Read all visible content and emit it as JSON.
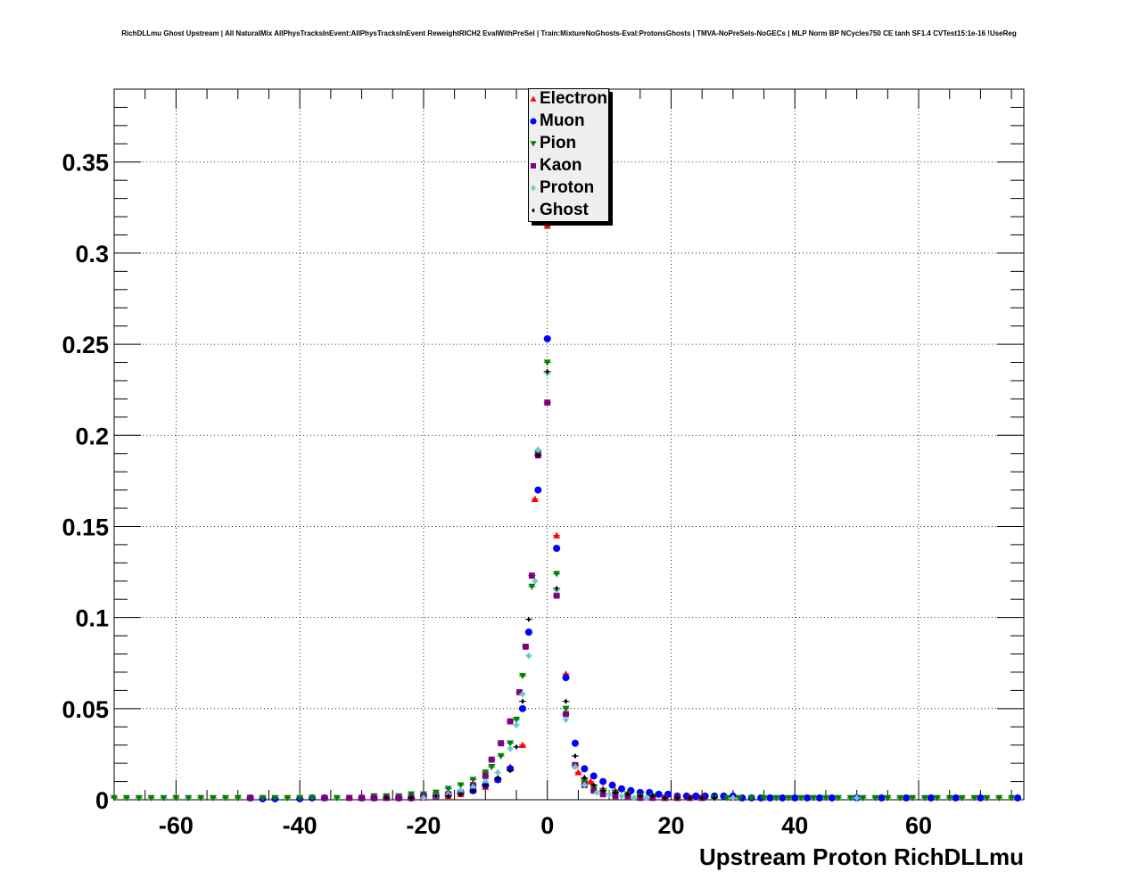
{
  "chart_data": {
    "type": "scatter",
    "title": "RichDLLmu Ghost Upstream | All NaturalMix AllPhysTracksInEvent:AllPhysTracksInEvent ReweightRICH2 EvalWithPreSel | Train:MixtureNoGhosts-Eval:ProtonsGhosts | TMVA-NoPreSels-NoGECs | MLP Norm BP NCycles750 CE tanh SF1.4 CVTest15:1e-16 !UseReg",
    "xlabel": "Upstream Proton RichDLLmu",
    "ylabel": "",
    "xlim": [
      -70,
      77
    ],
    "ylim": [
      0,
      0.39
    ],
    "grid": true,
    "legend_position": "top-center",
    "x_ticks": [
      "-60",
      "-40",
      "-20",
      "0",
      "20",
      "40",
      "60"
    ],
    "x_tick_values": [
      -60,
      -40,
      -20,
      0,
      20,
      40,
      60
    ],
    "y_ticks": [
      "0",
      "0.05",
      "0.1",
      "0.15",
      "0.2",
      "0.25",
      "0.3",
      "0.35"
    ],
    "y_tick_values": [
      0,
      0.05,
      0.1,
      0.15,
      0.2,
      0.25,
      0.3,
      0.35
    ],
    "series": [
      {
        "name": "Electron",
        "color": "#ff0000",
        "marker": "triangle-up",
        "points": [
          [
            -30,
            0.001
          ],
          [
            -28,
            0.001
          ],
          [
            -26,
            0.001
          ],
          [
            -24,
            0.001
          ],
          [
            -22,
            0.001
          ],
          [
            -20,
            0.001
          ],
          [
            -18,
            0.002
          ],
          [
            -16,
            0.002
          ],
          [
            -14,
            0.003
          ],
          [
            -12,
            0.005
          ],
          [
            -10,
            0.007
          ],
          [
            -8,
            0.011
          ],
          [
            -6,
            0.018
          ],
          [
            -4,
            0.03
          ],
          [
            -2,
            0.165
          ],
          [
            0,
            0.315
          ],
          [
            1.5,
            0.145
          ],
          [
            3,
            0.069
          ],
          [
            5,
            0.015
          ],
          [
            6,
            0.012
          ],
          [
            7,
            0.01
          ],
          [
            9,
            0.006
          ],
          [
            11,
            0.005
          ],
          [
            13,
            0.003
          ],
          [
            15,
            0.002
          ],
          [
            17,
            0.002
          ],
          [
            19,
            0.001
          ],
          [
            21,
            0.001
          ],
          [
            25,
            0.001
          ],
          [
            30,
            0.001
          ]
        ]
      },
      {
        "name": "Muon",
        "color": "#0000ff",
        "marker": "circle",
        "points": [
          [
            -48,
            0.001
          ],
          [
            -46,
            0.0005
          ],
          [
            -44,
            0.0005
          ],
          [
            -40,
            0.0005
          ],
          [
            -38,
            0.001
          ],
          [
            -36,
            0.001
          ],
          [
            -30,
            0.001
          ],
          [
            -28,
            0.001
          ],
          [
            -24,
            0.001
          ],
          [
            -22,
            0.001
          ],
          [
            -20,
            0.002
          ],
          [
            -18,
            0.002
          ],
          [
            -16,
            0.003
          ],
          [
            -14,
            0.004
          ],
          [
            -12,
            0.005
          ],
          [
            -10,
            0.008
          ],
          [
            -8,
            0.011
          ],
          [
            -6,
            0.017
          ],
          [
            -4,
            0.05
          ],
          [
            -3,
            0.092
          ],
          [
            -1.5,
            0.17
          ],
          [
            0,
            0.253
          ],
          [
            1.5,
            0.138
          ],
          [
            3,
            0.067
          ],
          [
            4.5,
            0.031
          ],
          [
            6,
            0.017
          ],
          [
            7.5,
            0.013
          ],
          [
            9,
            0.01
          ],
          [
            10.5,
            0.008
          ],
          [
            12,
            0.006
          ],
          [
            13.5,
            0.005
          ],
          [
            15,
            0.004
          ],
          [
            16.5,
            0.004
          ],
          [
            18,
            0.003
          ],
          [
            19.5,
            0.003
          ],
          [
            21,
            0.002
          ],
          [
            22.5,
            0.002
          ],
          [
            24,
            0.002
          ],
          [
            25.5,
            0.002
          ],
          [
            27,
            0.002
          ],
          [
            28.5,
            0.002
          ],
          [
            30,
            0.002
          ],
          [
            31.5,
            0.001
          ],
          [
            33,
            0.001
          ],
          [
            34.5,
            0.001
          ],
          [
            36,
            0.001
          ],
          [
            38,
            0.001
          ],
          [
            40,
            0.001
          ],
          [
            42,
            0.001
          ],
          [
            44,
            0.001
          ],
          [
            46,
            0.001
          ],
          [
            50,
            0.001
          ],
          [
            54,
            0.001
          ],
          [
            58,
            0.001
          ],
          [
            62,
            0.001
          ],
          [
            66,
            0.001
          ],
          [
            70,
            0.001
          ],
          [
            76,
            0.001
          ]
        ]
      },
      {
        "name": "Pion",
        "color": "#008000",
        "marker": "triangle-down",
        "points": [
          [
            -70,
            0.001
          ],
          [
            -68,
            0.001
          ],
          [
            -66,
            0.001
          ],
          [
            -64,
            0.001
          ],
          [
            -62,
            0.001
          ],
          [
            -60,
            0.001
          ],
          [
            -58,
            0.001
          ],
          [
            -56,
            0.001
          ],
          [
            -54,
            0.001
          ],
          [
            -52,
            0.001
          ],
          [
            -50,
            0.001
          ],
          [
            -48,
            0.001
          ],
          [
            -46,
            0.001
          ],
          [
            -44,
            0.001
          ],
          [
            -42,
            0.001
          ],
          [
            -40,
            0.001
          ],
          [
            -38,
            0.001
          ],
          [
            -36,
            0.001
          ],
          [
            -34,
            0.001
          ],
          [
            -32,
            0.001
          ],
          [
            -30,
            0.001
          ],
          [
            -28,
            0.002
          ],
          [
            -26,
            0.002
          ],
          [
            -24,
            0.002
          ],
          [
            -22,
            0.003
          ],
          [
            -20,
            0.003
          ],
          [
            -18,
            0.004
          ],
          [
            -16,
            0.006
          ],
          [
            -14,
            0.008
          ],
          [
            -12,
            0.011
          ],
          [
            -10,
            0.015
          ],
          [
            -9,
            0.018
          ],
          [
            -7.5,
            0.024
          ],
          [
            -6,
            0.031
          ],
          [
            -5,
            0.044
          ],
          [
            -4,
            0.068
          ],
          [
            -2.5,
            0.117
          ],
          [
            -1.5,
            0.19
          ],
          [
            0,
            0.24
          ],
          [
            1.5,
            0.124
          ],
          [
            3,
            0.05
          ],
          [
            4.5,
            0.019
          ],
          [
            6,
            0.01
          ],
          [
            7.5,
            0.007
          ],
          [
            9,
            0.005
          ],
          [
            11,
            0.004
          ],
          [
            13,
            0.003
          ],
          [
            15,
            0.002
          ],
          [
            17,
            0.002
          ],
          [
            19,
            0.001
          ],
          [
            21,
            0.001
          ],
          [
            23,
            0.001
          ],
          [
            25,
            0.001
          ],
          [
            27,
            0.001
          ],
          [
            29,
            0.001
          ],
          [
            31,
            0.001
          ],
          [
            33,
            0.001
          ],
          [
            35,
            0.001
          ],
          [
            37,
            0.001
          ],
          [
            39,
            0.001
          ],
          [
            41,
            0.001
          ],
          [
            43,
            0.001
          ],
          [
            45,
            0.001
          ],
          [
            47,
            0.001
          ],
          [
            49,
            0.001
          ],
          [
            51,
            0.001
          ],
          [
            53,
            0.001
          ],
          [
            55,
            0.001
          ],
          [
            57,
            0.001
          ],
          [
            59,
            0.001
          ],
          [
            61,
            0.001
          ],
          [
            63,
            0.001
          ],
          [
            65,
            0.001
          ],
          [
            67,
            0.001
          ],
          [
            69,
            0.001
          ],
          [
            71,
            0.001
          ],
          [
            73,
            0.001
          ],
          [
            75,
            0.001
          ]
        ]
      },
      {
        "name": "Kaon",
        "color": "#800080",
        "marker": "square",
        "points": [
          [
            -48,
            0.001
          ],
          [
            -36,
            0.001
          ],
          [
            -32,
            0.001
          ],
          [
            -30,
            0.001
          ],
          [
            -28,
            0.001
          ],
          [
            -26,
            0.001
          ],
          [
            -24,
            0.001
          ],
          [
            -22,
            0.001
          ],
          [
            -20,
            0.002
          ],
          [
            -18,
            0.002
          ],
          [
            -16,
            0.003
          ],
          [
            -14,
            0.004
          ],
          [
            -12,
            0.008
          ],
          [
            -10,
            0.013
          ],
          [
            -9,
            0.022
          ],
          [
            -7.5,
            0.031
          ],
          [
            -6,
            0.043
          ],
          [
            -4.5,
            0.059
          ],
          [
            -3.5,
            0.084
          ],
          [
            -2.5,
            0.123
          ],
          [
            -1.5,
            0.189
          ],
          [
            0,
            0.218
          ],
          [
            1.5,
            0.112
          ],
          [
            3,
            0.047
          ],
          [
            4.5,
            0.019
          ],
          [
            6,
            0.008
          ],
          [
            7.5,
            0.005
          ],
          [
            9,
            0.003
          ],
          [
            11,
            0.002
          ],
          [
            13,
            0.002
          ],
          [
            15,
            0.001
          ],
          [
            17,
            0.001
          ],
          [
            19,
            0.001
          ],
          [
            21,
            0.001
          ],
          [
            23,
            0.001
          ],
          [
            25,
            0.001
          ]
        ]
      },
      {
        "name": "Proton",
        "color": "#66cccc",
        "marker": "diamond",
        "points": [
          [
            -20,
            0.001
          ],
          [
            -18,
            0.002
          ],
          [
            -16,
            0.003
          ],
          [
            -14,
            0.005
          ],
          [
            -12,
            0.007
          ],
          [
            -10,
            0.01
          ],
          [
            -8,
            0.015
          ],
          [
            -6,
            0.028
          ],
          [
            -5,
            0.041
          ],
          [
            -4,
            0.058
          ],
          [
            -3,
            0.079
          ],
          [
            -2,
            0.12
          ],
          [
            -1.5,
            0.192
          ],
          [
            0,
            0.234
          ],
          [
            1.5,
            0.115
          ],
          [
            3,
            0.044
          ],
          [
            4.5,
            0.018
          ],
          [
            6,
            0.008
          ],
          [
            8,
            0.004
          ],
          [
            10,
            0.003
          ],
          [
            12,
            0.002
          ],
          [
            14,
            0.001
          ],
          [
            16,
            0.001
          ],
          [
            30,
            0.001
          ],
          [
            50,
            0.001
          ]
        ]
      },
      {
        "name": "Ghost",
        "color": "#000000",
        "marker": "small-diamond",
        "points": [
          [
            -26,
            0.001
          ],
          [
            -22,
            0.001
          ],
          [
            -18,
            0.002
          ],
          [
            -16,
            0.002
          ],
          [
            -14,
            0.003
          ],
          [
            -12,
            0.005
          ],
          [
            -10,
            0.008
          ],
          [
            -8,
            0.012
          ],
          [
            -6,
            0.016
          ],
          [
            -5,
            0.029
          ],
          [
            -4,
            0.054
          ],
          [
            -3,
            0.099
          ],
          [
            -1.5,
            0.189
          ],
          [
            0,
            0.235
          ],
          [
            1.5,
            0.116
          ],
          [
            3,
            0.054
          ],
          [
            4.5,
            0.024
          ],
          [
            6,
            0.012
          ],
          [
            7.5,
            0.008
          ],
          [
            9,
            0.005
          ],
          [
            11,
            0.004
          ],
          [
            13,
            0.003
          ],
          [
            15,
            0.002
          ],
          [
            17,
            0.002
          ],
          [
            19,
            0.001
          ],
          [
            21,
            0.001
          ],
          [
            23,
            0.001
          ],
          [
            25,
            0.001
          ],
          [
            27,
            0.001
          ]
        ]
      }
    ]
  }
}
